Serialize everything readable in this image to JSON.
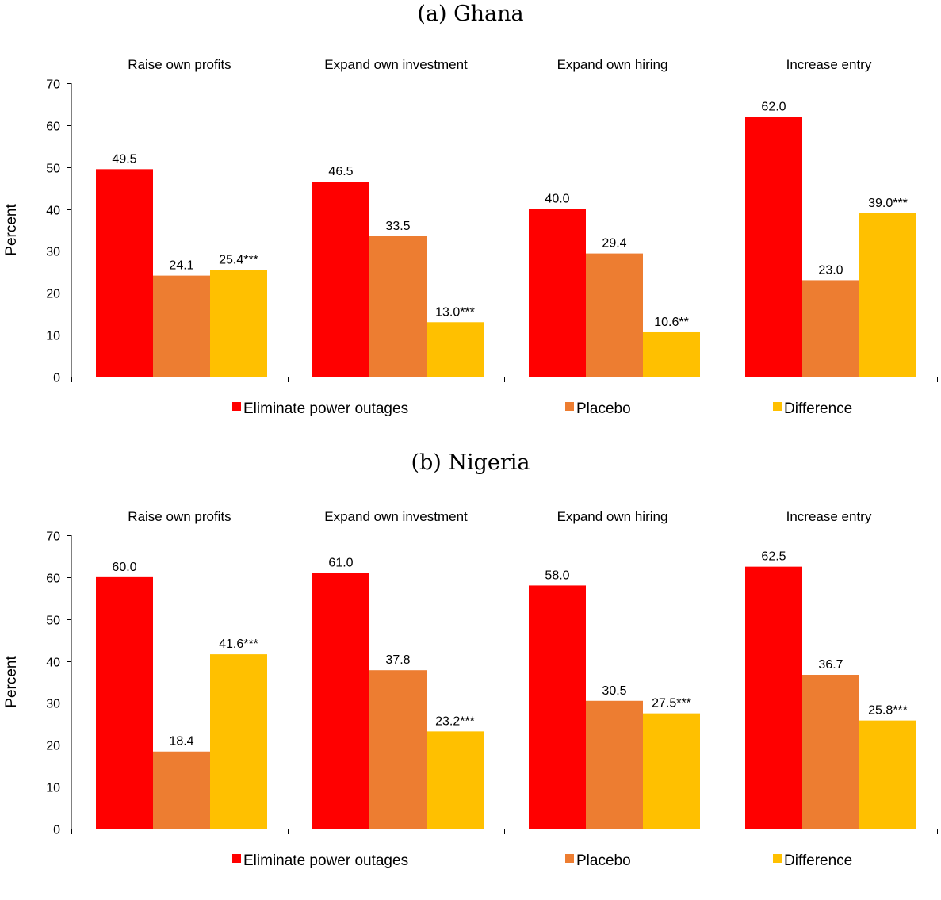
{
  "colors": {
    "Eliminate power outages": "#ff0000",
    "Placebo": "#ed7d31",
    "Difference": "#ffc000"
  },
  "chart_data": [
    {
      "type": "bar",
      "title": "(a) Ghana",
      "ylabel": "Percent",
      "ylim": [
        0,
        70
      ],
      "yticks": [
        0,
        10,
        20,
        30,
        40,
        50,
        60,
        70
      ],
      "categories": [
        "Raise own profits",
        "Expand own investment",
        "Expand own hiring",
        "Increase entry"
      ],
      "legend_position": "bottom",
      "series": [
        {
          "name": "Eliminate power outages",
          "values": [
            49.5,
            46.5,
            40.0,
            62.0
          ],
          "labels": [
            "49.5",
            "46.5",
            "40.0",
            "62.0"
          ]
        },
        {
          "name": "Placebo",
          "values": [
            24.1,
            33.5,
            29.4,
            23.0
          ],
          "labels": [
            "24.1",
            "33.5",
            "29.4",
            "23.0"
          ]
        },
        {
          "name": "Difference",
          "values": [
            25.4,
            13.0,
            10.6,
            39.0
          ],
          "labels": [
            "25.4***",
            "13.0***",
            "10.6**",
            "39.0***"
          ]
        }
      ]
    },
    {
      "type": "bar",
      "title": "(b) Nigeria",
      "ylabel": "Percent",
      "ylim": [
        0,
        70
      ],
      "yticks": [
        0,
        10,
        20,
        30,
        40,
        50,
        60,
        70
      ],
      "categories": [
        "Raise own profits",
        "Expand own investment",
        "Expand own hiring",
        "Increase entry"
      ],
      "legend_position": "bottom",
      "series": [
        {
          "name": "Eliminate power outages",
          "values": [
            60.0,
            61.0,
            58.0,
            62.5
          ],
          "labels": [
            "60.0",
            "61.0",
            "58.0",
            "62.5"
          ]
        },
        {
          "name": "Placebo",
          "values": [
            18.4,
            37.8,
            30.5,
            36.7
          ],
          "labels": [
            "18.4",
            "37.8",
            "30.5",
            "36.7"
          ]
        },
        {
          "name": "Difference",
          "values": [
            41.6,
            23.2,
            27.5,
            25.8
          ],
          "labels": [
            "41.6***",
            "23.2***",
            "27.5***",
            "25.8***"
          ]
        }
      ]
    }
  ]
}
